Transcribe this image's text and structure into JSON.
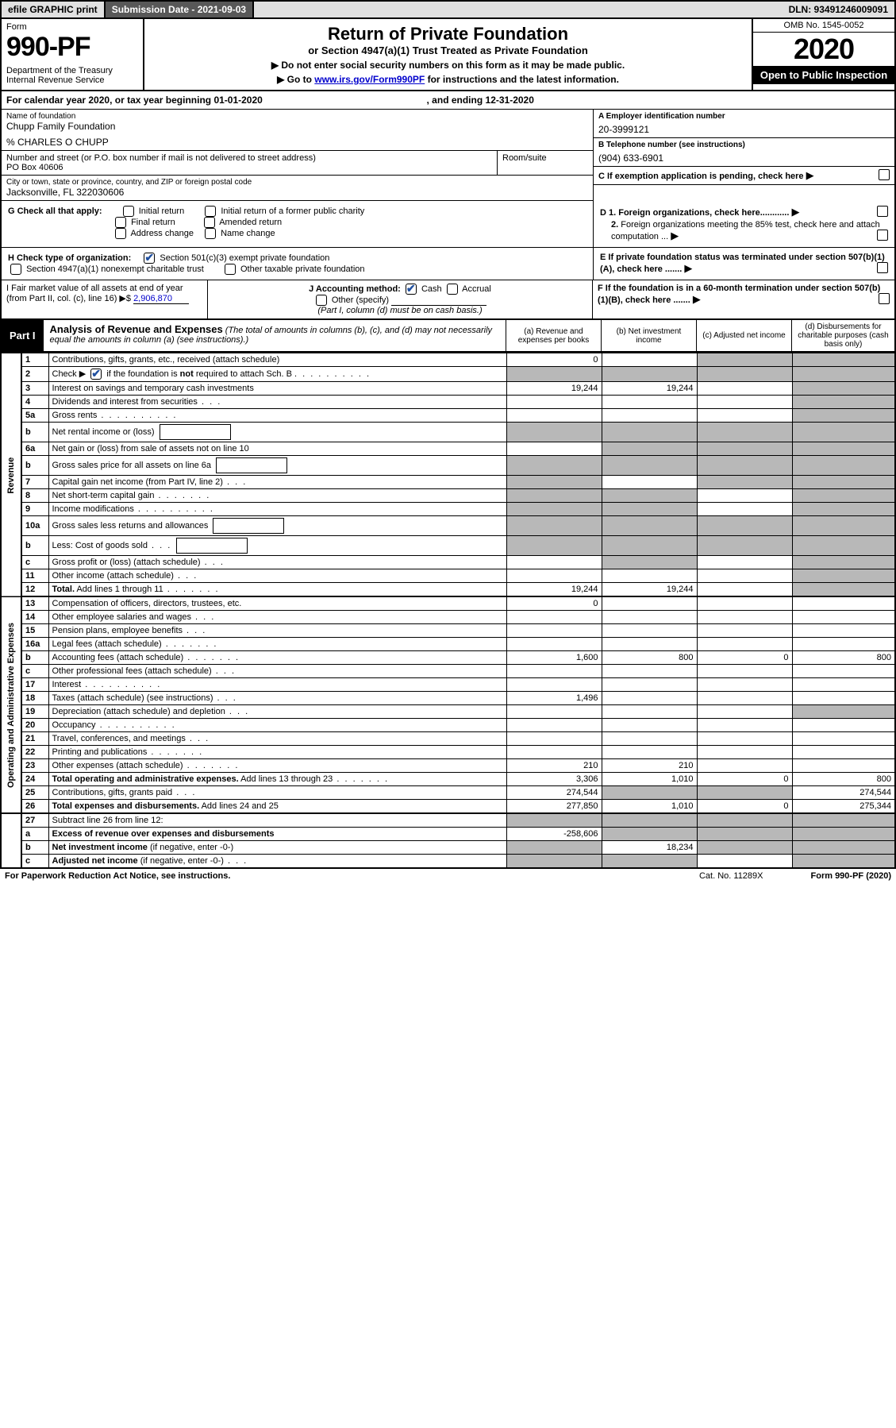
{
  "topbar": {
    "efile": "efile GRAPHIC print",
    "subdate": "Submission Date - 2021-09-03",
    "dln": "DLN: 93491246009091"
  },
  "header": {
    "formword": "Form",
    "formno": "990-PF",
    "dept": "Department of the Treasury\nInternal Revenue Service",
    "title": "Return of Private Foundation",
    "subtitle": "or Section 4947(a)(1) Trust Treated as Private Foundation",
    "note1": "▶ Do not enter social security numbers on this form as it may be made public.",
    "note2_pre": "▶ Go to ",
    "note2_link": "www.irs.gov/Form990PF",
    "note2_post": " for instructions and the latest information.",
    "omb": "OMB No. 1545-0052",
    "year": "2020",
    "open": "Open to Public Inspection"
  },
  "calyear": "For calendar year 2020, or tax year beginning 01-01-2020",
  "calyear_end": ", and ending 12-31-2020",
  "ident": {
    "name_lbl": "Name of foundation",
    "name": "Chupp Family Foundation",
    "care": "% CHARLES O CHUPP",
    "addr_lbl": "Number and street (or P.O. box number if mail is not delivered to street address)",
    "addr": "PO Box 40606",
    "room_lbl": "Room/suite",
    "city_lbl": "City or town, state or province, country, and ZIP or foreign postal code",
    "city": "Jacksonville, FL  322030606",
    "ein_lbl": "A Employer identification number",
    "ein": "20-3999121",
    "tel_lbl": "B Telephone number (see instructions)",
    "tel": "(904) 633-6901",
    "c_lbl": "C If exemption application is pending, check here",
    "d1": "D 1. Foreign organizations, check here............",
    "d2": "2. Foreign organizations meeting the 85% test, check here and attach computation ...",
    "e": "E  If private foundation status was terminated under section 507(b)(1)(A), check here .......",
    "f": "F  If the foundation is in a 60-month termination under section 507(b)(1)(B), check here .......",
    "g_lbl": "G Check all that apply:",
    "g_opts": [
      "Initial return",
      "Initial return of a former public charity",
      "Final return",
      "Amended return",
      "Address change",
      "Name change"
    ],
    "h_lbl": "H Check type of organization:",
    "h_501": "Section 501(c)(3) exempt private foundation",
    "h_4947": "Section 4947(a)(1) nonexempt charitable trust",
    "h_other": "Other taxable private foundation",
    "i_lbl": "I Fair market value of all assets at end of year (from Part II, col. (c), line 16) ▶$",
    "i_val": "2,906,870",
    "j_lbl": "J Accounting method:",
    "j_cash": "Cash",
    "j_accrual": "Accrual",
    "j_other": "Other (specify)",
    "j_note": "(Part I, column (d) must be on cash basis.)"
  },
  "part1": {
    "label": "Part I",
    "title": "Analysis of Revenue and Expenses",
    "title_note": "(The total of amounts in columns (b), (c), and (d) may not necessarily equal the amounts in column (a) (see instructions).)",
    "col_a": "(a) Revenue and expenses per books",
    "col_b": "(b) Net investment income",
    "col_c": "(c) Adjusted net income",
    "col_d": "(d) Disbursements for charitable purposes (cash basis only)"
  },
  "sidelabels": {
    "rev": "Revenue",
    "exp": "Operating and Administrative Expenses"
  },
  "rows": [
    {
      "n": "1",
      "d": "Contributions, gifts, grants, etc., received (attach schedule)",
      "a": "0",
      "b": "",
      "c": "",
      "dd": "",
      "greyC": true,
      "greyD": true
    },
    {
      "n": "2",
      "d": "Check ▶ ☑ if the foundation is <b>not</b> required to attach Sch. B",
      "merge": true
    },
    {
      "n": "3",
      "d": "Interest on savings and temporary cash investments",
      "a": "19,244",
      "b": "19,244",
      "c": "",
      "dd": "",
      "greyD": true
    },
    {
      "n": "4",
      "d": "Dividends and interest from securities",
      "a": "",
      "b": "",
      "c": "",
      "dd": "",
      "greyD": true,
      "dots": "dots3"
    },
    {
      "n": "5a",
      "d": "Gross rents",
      "a": "",
      "b": "",
      "c": "",
      "dd": "",
      "greyD": true,
      "dots": "dots"
    },
    {
      "n": "b",
      "d": "Net rental income or (loss)",
      "inline": true,
      "greyA": true,
      "greyB": true,
      "greyC": true,
      "greyD": true
    },
    {
      "n": "6a",
      "d": "Net gain or (loss) from sale of assets not on line 10",
      "a": "",
      "greyB": true,
      "greyC": true,
      "greyD": true
    },
    {
      "n": "b",
      "d": "Gross sales price for all assets on line 6a",
      "inline": true,
      "greyA": true,
      "greyB": true,
      "greyC": true,
      "greyD": true
    },
    {
      "n": "7",
      "d": "Capital gain net income (from Part IV, line 2)",
      "greyA": true,
      "b": "",
      "greyC": true,
      "greyD": true,
      "dots": "dots3"
    },
    {
      "n": "8",
      "d": "Net short-term capital gain",
      "greyA": true,
      "greyB": true,
      "c": "",
      "greyD": true,
      "dots": "dots5"
    },
    {
      "n": "9",
      "d": "Income modifications",
      "greyA": true,
      "greyB": true,
      "c": "",
      "greyD": true,
      "dots": "dots"
    },
    {
      "n": "10a",
      "d": "Gross sales less returns and allowances",
      "inline": true,
      "greyA": true,
      "greyB": true,
      "greyC": true,
      "greyD": true
    },
    {
      "n": "b",
      "d": "Less: Cost of goods sold",
      "inline": true,
      "greyA": true,
      "greyB": true,
      "greyC": true,
      "greyD": true,
      "dots": "dots3"
    },
    {
      "n": "c",
      "d": "Gross profit or (loss) (attach schedule)",
      "a": "",
      "greyB": true,
      "c": "",
      "greyD": true,
      "dots": "dots3"
    },
    {
      "n": "11",
      "d": "Other income (attach schedule)",
      "a": "",
      "b": "",
      "c": "",
      "greyD": true,
      "dots": "dots3"
    },
    {
      "n": "12",
      "d": "<b>Total.</b> Add lines 1 through 11",
      "a": "19,244",
      "b": "19,244",
      "c": "",
      "greyD": true,
      "dots": "dots5"
    }
  ],
  "exp_rows": [
    {
      "n": "13",
      "d": "Compensation of officers, directors, trustees, etc.",
      "a": "0",
      "b": "",
      "c": "",
      "dd": ""
    },
    {
      "n": "14",
      "d": "Other employee salaries and wages",
      "a": "",
      "b": "",
      "c": "",
      "dd": "",
      "dots": "dots3"
    },
    {
      "n": "15",
      "d": "Pension plans, employee benefits",
      "a": "",
      "b": "",
      "c": "",
      "dd": "",
      "dots": "dots3"
    },
    {
      "n": "16a",
      "d": "Legal fees (attach schedule)",
      "a": "",
      "b": "",
      "c": "",
      "dd": "",
      "dots": "dots5"
    },
    {
      "n": "b",
      "d": "Accounting fees (attach schedule)",
      "a": "1,600",
      "b": "800",
      "c": "0",
      "dd": "800",
      "dots": "dots5"
    },
    {
      "n": "c",
      "d": "Other professional fees (attach schedule)",
      "a": "",
      "b": "",
      "c": "",
      "dd": "",
      "dots": "dots3"
    },
    {
      "n": "17",
      "d": "Interest",
      "a": "",
      "b": "",
      "c": "",
      "dd": "",
      "dots": "dots"
    },
    {
      "n": "18",
      "d": "Taxes (attach schedule) (see instructions)",
      "a": "1,496",
      "b": "",
      "c": "",
      "dd": "",
      "dots": "dots3"
    },
    {
      "n": "19",
      "d": "Depreciation (attach schedule) and depletion",
      "a": "",
      "b": "",
      "c": "",
      "greyD": true,
      "dots": "dots3"
    },
    {
      "n": "20",
      "d": "Occupancy",
      "a": "",
      "b": "",
      "c": "",
      "dd": "",
      "dots": "dots"
    },
    {
      "n": "21",
      "d": "Travel, conferences, and meetings",
      "a": "",
      "b": "",
      "c": "",
      "dd": "",
      "dots": "dots3"
    },
    {
      "n": "22",
      "d": "Printing and publications",
      "a": "",
      "b": "",
      "c": "",
      "dd": "",
      "dots": "dots5"
    },
    {
      "n": "23",
      "d": "Other expenses (attach schedule)",
      "a": "210",
      "b": "210",
      "c": "",
      "dd": "",
      "dots": "dots5"
    },
    {
      "n": "24",
      "d": "<b>Total operating and administrative expenses.</b> Add lines 13 through 23",
      "a": "3,306",
      "b": "1,010",
      "c": "0",
      "dd": "800",
      "dots": "dots5"
    },
    {
      "n": "25",
      "d": "Contributions, gifts, grants paid",
      "a": "274,544",
      "greyB": true,
      "greyC": true,
      "dd": "274,544",
      "dots": "dots3"
    },
    {
      "n": "26",
      "d": "<b>Total expenses and disbursements.</b> Add lines 24 and 25",
      "a": "277,850",
      "b": "1,010",
      "c": "0",
      "dd": "275,344"
    }
  ],
  "bottom_rows": [
    {
      "n": "27",
      "d": "Subtract line 26 from line 12:",
      "greyA": true,
      "greyB": true,
      "greyC": true,
      "greyD": true
    },
    {
      "n": "a",
      "d": "<b>Excess of revenue over expenses and disbursements</b>",
      "a": "-258,606",
      "greyB": true,
      "greyC": true,
      "greyD": true
    },
    {
      "n": "b",
      "d": "<b>Net investment income</b> (if negative, enter -0-)",
      "greyA": true,
      "b": "18,234",
      "greyC": true,
      "greyD": true
    },
    {
      "n": "c",
      "d": "<b>Adjusted net income</b> (if negative, enter -0-)",
      "greyA": true,
      "greyB": true,
      "c": "",
      "greyD": true,
      "dots": "dots3"
    }
  ],
  "footer": {
    "left": "For Paperwork Reduction Act Notice, see instructions.",
    "cat": "Cat. No. 11289X",
    "form": "Form 990-PF (2020)"
  },
  "colors": {
    "link": "#0000cc",
    "grey": "#b8b8b8",
    "darkbar": "#585858",
    "check": "#2050a0"
  }
}
